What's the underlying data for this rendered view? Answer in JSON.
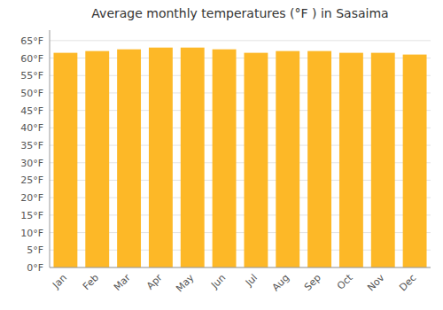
{
  "chart_data": {
    "type": "bar",
    "title": "Average monthly temperatures (°F ) in Sasaima",
    "categories": [
      "Jan",
      "Feb",
      "Mar",
      "Apr",
      "May",
      "Jun",
      "Jul",
      "Aug",
      "Sep",
      "Oct",
      "Nov",
      "Dec"
    ],
    "values": [
      61.5,
      62.0,
      62.5,
      63.0,
      63.0,
      62.5,
      61.5,
      62.0,
      62.0,
      61.5,
      61.5,
      61.0
    ],
    "color": "#FDB827",
    "ylim": [
      0,
      68
    ],
    "yticks": [
      {
        "value": 0,
        "label": "0°F"
      },
      {
        "value": 5,
        "label": "5°F"
      },
      {
        "value": 10,
        "label": "10°F"
      },
      {
        "value": 15,
        "label": "15°F"
      },
      {
        "value": 20,
        "label": "20°F"
      },
      {
        "value": 25,
        "label": "25°F"
      },
      {
        "value": 30,
        "label": "30°F"
      },
      {
        "value": 35,
        "label": "35°F"
      },
      {
        "value": 40,
        "label": "40°F"
      },
      {
        "value": 45,
        "label": "45°F"
      },
      {
        "value": 50,
        "label": "50°F"
      },
      {
        "value": 55,
        "label": "55°F"
      },
      {
        "value": 60,
        "label": "60°F"
      },
      {
        "value": 65,
        "label": "65°F"
      }
    ],
    "grid": true
  }
}
